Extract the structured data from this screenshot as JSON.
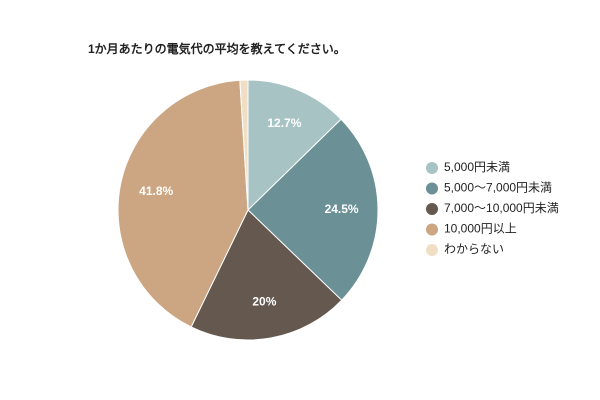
{
  "chart_data": {
    "type": "pie",
    "title": "1か月あたりの電気代の平均を教えてください。",
    "categories": [
      "5,000円未満",
      "5,000〜7,000円未満",
      "7,000〜10,000円未満",
      "10,000円以上",
      "わからない"
    ],
    "values": [
      12.7,
      24.5,
      20,
      41.8,
      1.0
    ],
    "value_labels": [
      "12.7%",
      "24.5%",
      "20%",
      "41.8%",
      null
    ],
    "colors": [
      "#a8c3c4",
      "#6b9096",
      "#64584f",
      "#cca682",
      "#f0dfc4"
    ],
    "legend": "right"
  }
}
